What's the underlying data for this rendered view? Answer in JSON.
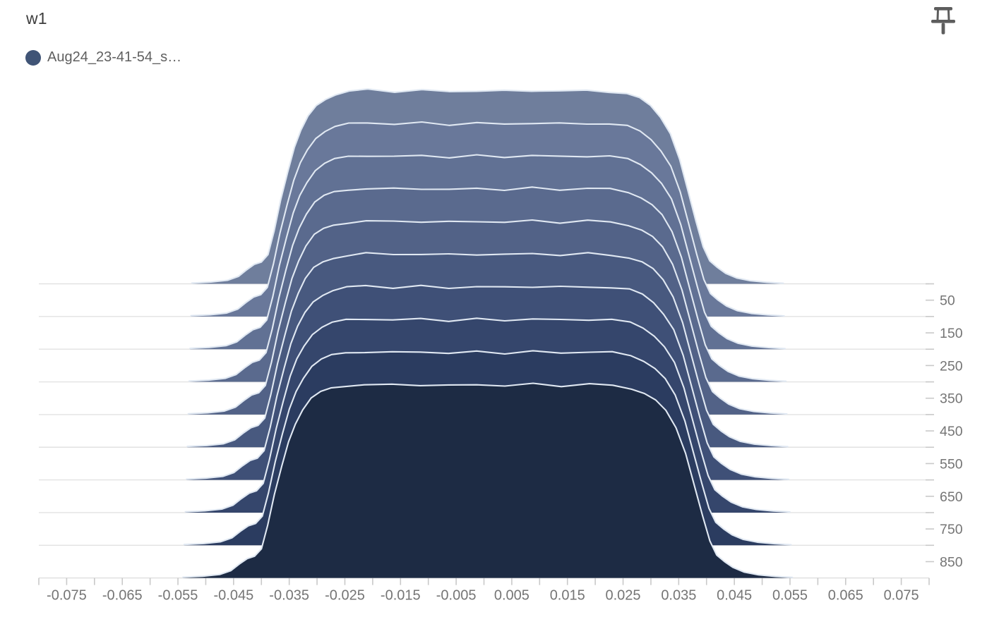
{
  "card": {
    "title": "w1"
  },
  "legend": {
    "items": [
      {
        "label": "Aug24_23-41-54_s…",
        "color": "#405476"
      }
    ]
  },
  "toolbar": {
    "pin_icon": "push-pin",
    "pin_color": "#5d5d5d"
  },
  "chart_data": {
    "type": "histogram_ridgeline",
    "title": "w1",
    "mode": "offset",
    "x_axis": {
      "min": -0.08,
      "max": 0.08,
      "minor_tick_step": 0.005,
      "tick_labels": [
        "-0.075",
        "-0.065",
        "-0.055",
        "-0.045",
        "-0.035",
        "-0.025",
        "-0.015",
        "-0.005",
        "0.005",
        "0.015",
        "0.025",
        "0.035",
        "0.045",
        "0.055",
        "0.065",
        "0.075"
      ]
    },
    "step_axis": {
      "side": "right",
      "labels": [
        "50",
        "150",
        "250",
        "350",
        "450",
        "550",
        "650",
        "750",
        "850"
      ],
      "baseline_steps": [
        0,
        100,
        200,
        300,
        400,
        500,
        600,
        700,
        800,
        900
      ]
    },
    "profile_points": [
      [
        -0.0533,
        0.004
      ],
      [
        -0.0498,
        0.009
      ],
      [
        -0.0468,
        0.018
      ],
      [
        -0.0448,
        0.038
      ],
      [
        -0.0433,
        0.072
      ],
      [
        -0.0419,
        0.1
      ],
      [
        -0.0406,
        0.112
      ],
      [
        -0.0394,
        0.15
      ],
      [
        -0.0383,
        0.27
      ],
      [
        -0.0371,
        0.43
      ],
      [
        -0.0358,
        0.575
      ],
      [
        -0.0346,
        0.7
      ],
      [
        -0.0334,
        0.79
      ],
      [
        -0.0321,
        0.862
      ],
      [
        -0.0306,
        0.92
      ],
      [
        -0.0289,
        0.953
      ],
      [
        -0.0271,
        0.974
      ],
      [
        -0.0246,
        0.988
      ],
      [
        -0.0212,
        0.996
      ],
      [
        -0.0163,
        0.99
      ],
      [
        -0.0113,
        0.994
      ],
      [
        -0.0063,
        0.988
      ],
      [
        -0.0013,
        0.993
      ],
      [
        0.0037,
        0.989
      ],
      [
        0.0087,
        0.995
      ],
      [
        0.0137,
        0.989
      ],
      [
        0.0187,
        0.994
      ],
      [
        0.0228,
        0.989
      ],
      [
        0.0261,
        0.976
      ],
      [
        0.0284,
        0.951
      ],
      [
        0.0304,
        0.912
      ],
      [
        0.0322,
        0.856
      ],
      [
        0.034,
        0.772
      ],
      [
        0.0357,
        0.64
      ],
      [
        0.0372,
        0.48
      ],
      [
        0.0387,
        0.32
      ],
      [
        0.04,
        0.19
      ],
      [
        0.0412,
        0.118
      ],
      [
        0.0426,
        0.084
      ],
      [
        0.0441,
        0.054
      ],
      [
        0.0461,
        0.03
      ],
      [
        0.0486,
        0.016
      ],
      [
        0.0516,
        0.008
      ],
      [
        0.0546,
        0.003
      ]
    ],
    "series": [
      {
        "step": 0,
        "width_scale": 0.985,
        "wiggle_phase": 0.0
      },
      {
        "step": 100,
        "width_scale": 0.988,
        "wiggle_phase": 1.3
      },
      {
        "step": 200,
        "width_scale": 0.991,
        "wiggle_phase": 2.1
      },
      {
        "step": 300,
        "width_scale": 0.994,
        "wiggle_phase": 3.4
      },
      {
        "step": 400,
        "width_scale": 0.997,
        "wiggle_phase": 4.2
      },
      {
        "step": 500,
        "width_scale": 1.0,
        "wiggle_phase": 5.0
      },
      {
        "step": 600,
        "width_scale": 1.003,
        "wiggle_phase": 0.7
      },
      {
        "step": 700,
        "width_scale": 1.007,
        "wiggle_phase": 1.9
      },
      {
        "step": 800,
        "width_scale": 1.011,
        "wiggle_phase": 2.8
      },
      {
        "step": 900,
        "width_scale": 1.015,
        "wiggle_phase": 3.9
      }
    ],
    "ridge_colors": [
      "#6f7e9c",
      "#69789a",
      "#617194",
      "#5a6a8e",
      "#526287",
      "#48597f",
      "#3f5077",
      "#35466c",
      "#2b3c60",
      "#1d2b44"
    ],
    "outline_color": "#e0e8f2",
    "grid_color": "#e2e2e2",
    "tick_color": "#c9c9c9",
    "axis_line_color": "#dcdcdc",
    "label_color": "#757575"
  }
}
